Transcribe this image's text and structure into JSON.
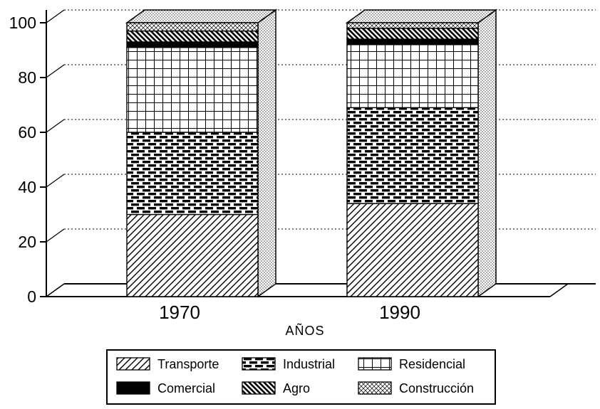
{
  "chart_data": {
    "type": "bar",
    "stacked": true,
    "pseudo_3d": true,
    "title": "",
    "xlabel": "AÑOS",
    "ylabel": "",
    "categories": [
      "1970",
      "1990"
    ],
    "series": [
      {
        "name": "Transporte",
        "pattern": "diagonal-lines",
        "values": [
          30,
          34
        ]
      },
      {
        "name": "Industrial",
        "pattern": "bricks",
        "values": [
          30,
          35
        ]
      },
      {
        "name": "Residencial",
        "pattern": "grid",
        "values": [
          31,
          23
        ]
      },
      {
        "name": "Comercial",
        "pattern": "solid-black",
        "values": [
          2,
          2
        ]
      },
      {
        "name": "Agro",
        "pattern": "heavy-hatch",
        "values": [
          4,
          4
        ]
      },
      {
        "name": "Construcción",
        "pattern": "fine-crosshatch",
        "values": [
          3,
          2
        ]
      }
    ],
    "ylim": [
      0,
      100
    ],
    "yticks": [
      0,
      20,
      40,
      60,
      80,
      100
    ],
    "grid": "dotted-horizontal",
    "legend_position": "bottom",
    "colors": {
      "ink": "#000000",
      "paper": "#ffffff"
    }
  }
}
